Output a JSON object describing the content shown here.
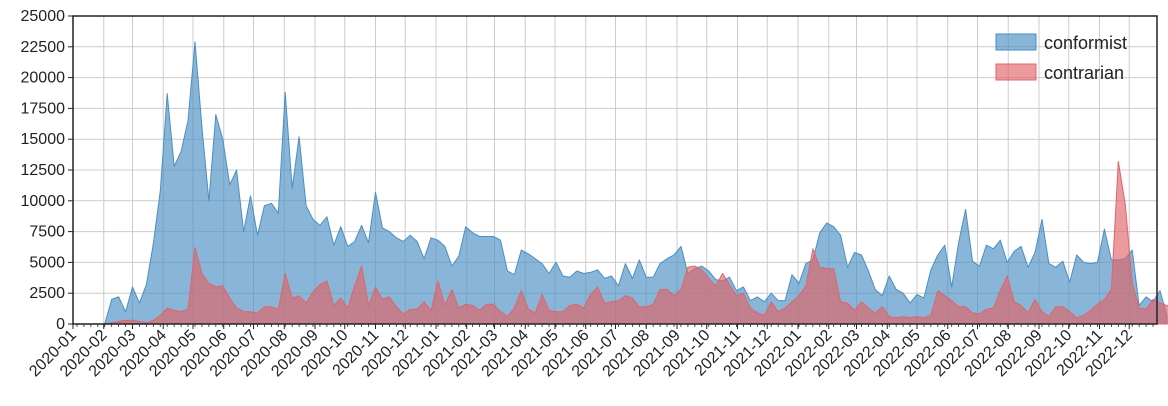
{
  "chart_data": {
    "type": "area",
    "x_unit": "week",
    "x_start": "2020-01-05",
    "x_tick_labels": [
      "2020-01",
      "2020-02",
      "2020-03",
      "2020-04",
      "2020-05",
      "2020-06",
      "2020-07",
      "2020-08",
      "2020-09",
      "2020-10",
      "2020-11",
      "2020-12",
      "2021-01",
      "2021-02",
      "2021-03",
      "2021-04",
      "2021-05",
      "2021-06",
      "2021-07",
      "2021-08",
      "2021-09",
      "2021-10",
      "2021-11",
      "2021-12",
      "2022-01",
      "2022-02",
      "2022-03",
      "2022-04",
      "2022-05",
      "2022-06",
      "2022-07",
      "2022-08",
      "2022-09",
      "2022-10",
      "2022-11",
      "2022-12"
    ],
    "y_ticks": [
      0,
      2500,
      5000,
      7500,
      10000,
      12500,
      15000,
      17500,
      20000,
      22500,
      25000
    ],
    "y_tick_labels": [
      "0",
      "2500",
      "5000",
      "7500",
      "10000",
      "12500",
      "15000",
      "17500",
      "20000",
      "22500",
      "25000"
    ],
    "ylim": [
      0,
      25000
    ],
    "grid": true,
    "legend_position": "top-right",
    "series": [
      {
        "name": "conformist",
        "color": "#4a8fc3",
        "values": [
          0,
          0,
          0,
          0,
          0,
          2000,
          2200,
          1000,
          3000,
          1700,
          3200,
          6500,
          10800,
          18700,
          12800,
          14000,
          16500,
          22900,
          16000,
          10000,
          17000,
          15000,
          11300,
          12500,
          7500,
          10400,
          7200,
          9600,
          9800,
          9000,
          18800,
          11000,
          15200,
          9600,
          8500,
          8000,
          8700,
          6400,
          7900,
          6300,
          6700,
          8000,
          6600,
          10700,
          7800,
          7500,
          7000,
          6700,
          7200,
          6700,
          5300,
          7000,
          6800,
          6300,
          4700,
          5500,
          7900,
          7400,
          7100,
          7100,
          7100,
          6800,
          4300,
          4000,
          6000,
          5700,
          5300,
          4900,
          4100,
          5000,
          3900,
          3800,
          4300,
          4100,
          4200,
          4400,
          3700,
          3900,
          3100,
          4900,
          3700,
          5200,
          3800,
          3800,
          4900,
          5300,
          5600,
          6300,
          4100,
          4500,
          4700,
          4300,
          3600,
          3500,
          3800,
          2700,
          3000,
          1900,
          2200,
          1800,
          2500,
          1900,
          1900,
          4000,
          3300,
          4900,
          5200,
          7400,
          8200,
          7900,
          7200,
          4600,
          5800,
          5600,
          4300,
          2800,
          2300,
          3900,
          2800,
          2500,
          1700,
          2400,
          2100,
          4400,
          5600,
          6400,
          3000,
          6600,
          9300,
          5100,
          4700,
          6400,
          6100,
          6800,
          5000,
          5900,
          6300,
          4600,
          5800,
          8500,
          4900,
          4600,
          5100,
          3400,
          5600,
          5000,
          4900,
          5000,
          7700,
          5200,
          5200,
          5300,
          6000,
          1500,
          2200,
          1800,
          2700,
          700
        ]
      },
      {
        "name": "contrarian",
        "color": "#e06468",
        "values": [
          0,
          0,
          0,
          0,
          0,
          100,
          200,
          300,
          300,
          200,
          100,
          300,
          700,
          1300,
          1100,
          1000,
          1200,
          6200,
          4100,
          3300,
          3000,
          3100,
          2100,
          1300,
          1000,
          1000,
          900,
          1400,
          1400,
          1200,
          4100,
          2100,
          2300,
          1700,
          2600,
          3200,
          3500,
          1500,
          2100,
          1300,
          3100,
          4700,
          1500,
          3000,
          2000,
          2200,
          1400,
          800,
          1200,
          1200,
          1800,
          1100,
          3500,
          1500,
          2800,
          1300,
          1600,
          1500,
          1100,
          1600,
          1600,
          1000,
          600,
          1300,
          2700,
          1200,
          900,
          2400,
          1100,
          1000,
          1000,
          1500,
          1600,
          1300,
          2400,
          3000,
          1700,
          1800,
          1900,
          2300,
          2100,
          1400,
          1400,
          1600,
          2800,
          2800,
          2300,
          2800,
          4600,
          4700,
          4400,
          3700,
          3100,
          4100,
          3200,
          2300,
          2500,
          1300,
          900,
          700,
          1800,
          1000,
          1300,
          1800,
          2300,
          3100,
          6100,
          4600,
          4500,
          4500,
          1800,
          1700,
          1100,
          1800,
          1300,
          900,
          1400,
          600,
          500,
          600,
          500,
          600,
          500,
          700,
          2700,
          2300,
          1900,
          1400,
          1400,
          900,
          800,
          1200,
          1300,
          2700,
          3900,
          1800,
          1500,
          900,
          2000,
          1000,
          600,
          1400,
          1400,
          1000,
          500,
          700,
          1100,
          1600,
          2000,
          2800,
          13200,
          9700,
          3300,
          1300,
          1200,
          2000,
          1700,
          1500,
          1200,
          500
        ]
      }
    ]
  }
}
